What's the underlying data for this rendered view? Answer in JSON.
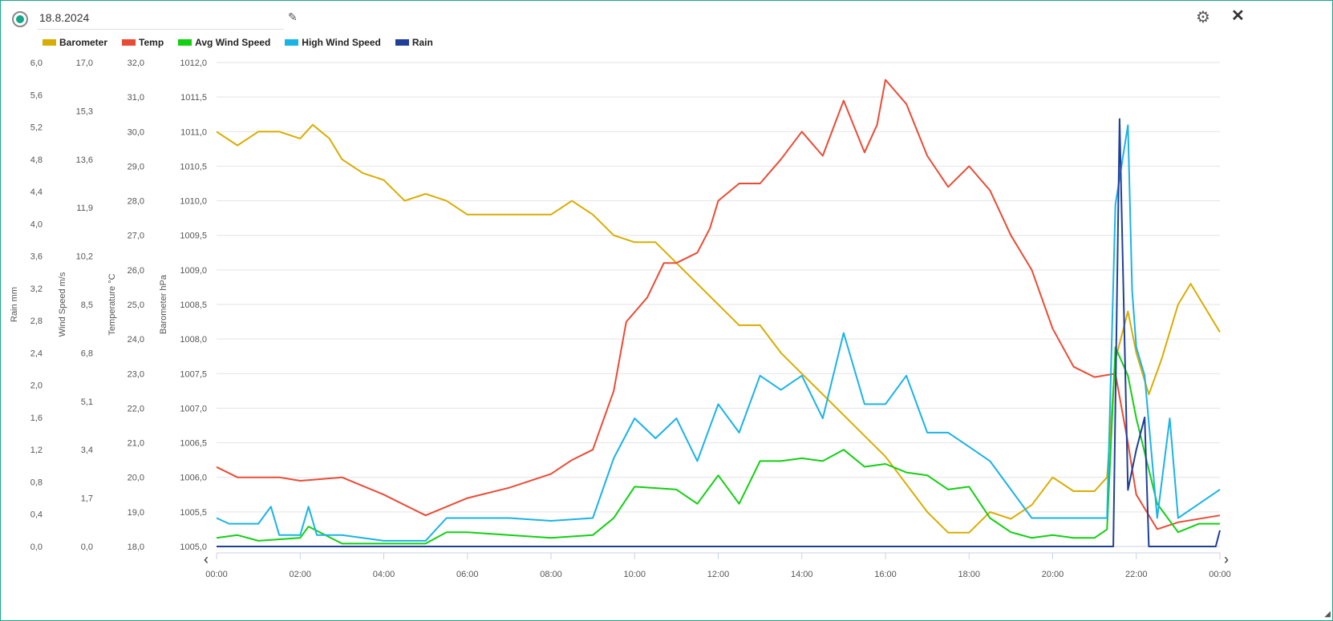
{
  "header": {
    "title": "18.8.2024",
    "edit_icon": "pencil-icon",
    "settings_icon": "gear-icon",
    "close_icon": "close-icon"
  },
  "chart_data": {
    "type": "line",
    "legend": [
      {
        "name": "Barometer",
        "color": "#d9ad00"
      },
      {
        "name": "Temp",
        "color": "#ea4b35"
      },
      {
        "name": "Avg Wind Speed",
        "color": "#12d012"
      },
      {
        "name": "High Wind Speed",
        "color": "#1ab3e6"
      },
      {
        "name": "Rain",
        "color": "#1f3f99"
      }
    ],
    "legend_position": "top-left",
    "x_ticks": [
      "00:00",
      "02:00",
      "04:00",
      "06:00",
      "08:00",
      "10:00",
      "12:00",
      "14:00",
      "16:00",
      "18:00",
      "20:00",
      "22:00",
      "00:00"
    ],
    "xlim": [
      0,
      24
    ],
    "axes": [
      {
        "title": "Rain mm",
        "ticks": [
          "6,0",
          "5,6",
          "5,2",
          "4,8",
          "4,4",
          "4,0",
          "3,6",
          "3,2",
          "2,8",
          "2,4",
          "2,0",
          "1,6",
          "1,2",
          "0,8",
          "0,4",
          "0,0"
        ],
        "range": [
          0,
          6
        ]
      },
      {
        "title": "Wind Speed m/s",
        "ticks": [
          "17,0",
          "15,3",
          "13,6",
          "11,9",
          "10,2",
          "8,5",
          "6,8",
          "5,1",
          "3,4",
          "1,7",
          "0,0"
        ],
        "range": [
          0,
          17
        ]
      },
      {
        "title": "Temperature °C",
        "ticks": [
          "32,0",
          "31,0",
          "30,0",
          "29,0",
          "28,0",
          "27,0",
          "26,0",
          "25,0",
          "24,0",
          "23,0",
          "22,0",
          "21,0",
          "20,0",
          "19,0",
          "18,0"
        ],
        "range": [
          18,
          32
        ]
      },
      {
        "title": "Barometer hPa",
        "ticks": [
          "1012,0",
          "1011,5",
          "1011,0",
          "1010,5",
          "1010,0",
          "1009,5",
          "1009,0",
          "1008,5",
          "1008,0",
          "1007,5",
          "1007,0",
          "1006,5",
          "1006,0",
          "1005,5",
          "1005,0"
        ],
        "range": [
          1005,
          1012
        ]
      }
    ],
    "series": [
      {
        "name": "Barometer",
        "axis": 3,
        "x": [
          0,
          0.5,
          1,
          1.5,
          2,
          2.3,
          2.7,
          3,
          3.5,
          4,
          4.5,
          5,
          5.5,
          6,
          7,
          8,
          8.5,
          9,
          9.5,
          10,
          10.5,
          11,
          11.5,
          12,
          12.5,
          13,
          13.5,
          14,
          14.5,
          15,
          15.5,
          16,
          16.5,
          17,
          17.5,
          18,
          18.5,
          19,
          19.5,
          20,
          20.5,
          21,
          21.3,
          21.5,
          21.8,
          22,
          22.3,
          22.6,
          23,
          23.3,
          23.6,
          24
        ],
        "y": [
          1011,
          1010.8,
          1011,
          1011,
          1010.9,
          1011.1,
          1010.9,
          1010.6,
          1010.4,
          1010.3,
          1010,
          1010.1,
          1010,
          1009.8,
          1009.8,
          1009.8,
          1010,
          1009.8,
          1009.5,
          1009.4,
          1009.4,
          1009.1,
          1008.8,
          1008.5,
          1008.2,
          1008.2,
          1007.8,
          1007.5,
          1007.2,
          1006.9,
          1006.6,
          1006.3,
          1005.9,
          1005.5,
          1005.2,
          1005.2,
          1005.5,
          1005.4,
          1005.6,
          1006,
          1005.8,
          1005.8,
          1006,
          1007.7,
          1008.4,
          1007.8,
          1007.2,
          1007.7,
          1008.5,
          1008.8,
          1008.5,
          1008.1
        ]
      },
      {
        "name": "Temp",
        "axis": 2,
        "x": [
          0,
          0.5,
          1.5,
          2,
          3,
          4,
          5,
          6,
          7,
          8,
          8.5,
          9,
          9.5,
          9.8,
          10.3,
          10.7,
          11,
          11.5,
          11.8,
          12,
          12.5,
          13,
          13.5,
          14,
          14.5,
          15,
          15.5,
          15.8,
          16,
          16.5,
          17,
          17.5,
          18,
          18.5,
          19,
          19.5,
          20,
          20.5,
          21,
          21.5,
          21.8,
          22,
          22.5,
          23,
          24
        ],
        "y": [
          20.3,
          20,
          20,
          19.9,
          20,
          19.5,
          18.9,
          19.4,
          19.7,
          20.1,
          20.5,
          20.8,
          22.5,
          24.5,
          25.2,
          26.2,
          26.2,
          26.5,
          27.2,
          28,
          28.5,
          28.5,
          29.2,
          30,
          29.3,
          30.9,
          29.4,
          30.2,
          31.5,
          30.8,
          29.3,
          28.4,
          29,
          28.3,
          27,
          26,
          24.3,
          23.2,
          22.9,
          23,
          21,
          19.5,
          18.5,
          18.7,
          18.9
        ]
      },
      {
        "name": "Avg Wind Speed",
        "axis": 1,
        "x": [
          0,
          0.5,
          1,
          2,
          2.2,
          3,
          4,
          5,
          5.5,
          6,
          7,
          8,
          9,
          9.5,
          10,
          11,
          11.5,
          12,
          12.5,
          13,
          13.5,
          14,
          14.5,
          15,
          15.5,
          16,
          16.5,
          17,
          17.5,
          18,
          18.5,
          19,
          19.5,
          20,
          20.5,
          21,
          21.3,
          21.5,
          21.8,
          22,
          22.5,
          23,
          23.5,
          24
        ],
        "y": [
          0.3,
          0.4,
          0.2,
          0.3,
          0.7,
          0.1,
          0.1,
          0.1,
          0.5,
          0.5,
          0.4,
          0.3,
          0.4,
          1,
          2.1,
          2,
          1.5,
          2.5,
          1.5,
          3,
          3,
          3.1,
          3,
          3.4,
          2.8,
          2.9,
          2.6,
          2.5,
          2,
          2.1,
          1,
          0.5,
          0.3,
          0.4,
          0.3,
          0.3,
          0.6,
          7,
          6,
          4.5,
          1.5,
          0.5,
          0.8,
          0.8
        ]
      },
      {
        "name": "High Wind Speed",
        "axis": 1,
        "x": [
          0,
          0.3,
          1,
          1.3,
          1.5,
          2,
          2.2,
          2.4,
          3,
          4,
          5,
          5.5,
          6,
          7,
          8,
          9,
          9.5,
          10,
          10.5,
          11,
          11.5,
          12,
          12.5,
          13,
          13.5,
          14,
          14.5,
          15,
          15.5,
          16,
          16.5,
          17,
          17.5,
          18,
          18.5,
          19,
          19.5,
          20,
          20.5,
          21,
          21.3,
          21.5,
          21.8,
          21.9,
          22,
          22.2,
          22.5,
          22.8,
          23,
          24
        ],
        "y": [
          1,
          0.8,
          0.8,
          1.4,
          0.4,
          0.4,
          1.4,
          0.4,
          0.4,
          0.2,
          0.2,
          1,
          1,
          1,
          0.9,
          1,
          3.1,
          4.5,
          3.8,
          4.5,
          3,
          5,
          4,
          6,
          5.5,
          6,
          4.5,
          7.5,
          5,
          5,
          6,
          4,
          4,
          3.5,
          3,
          2,
          1,
          1,
          1,
          1,
          1,
          12,
          14.8,
          9,
          7,
          6,
          1,
          4.5,
          1,
          2
        ]
      },
      {
        "name": "Rain",
        "axis": 0,
        "x": [
          0,
          21.45,
          21.6,
          21.8,
          22,
          22.2,
          22.3,
          23.9,
          24
        ],
        "y": [
          0,
          0,
          5.3,
          0.7,
          1.2,
          1.6,
          0,
          0,
          0.2
        ]
      }
    ]
  }
}
